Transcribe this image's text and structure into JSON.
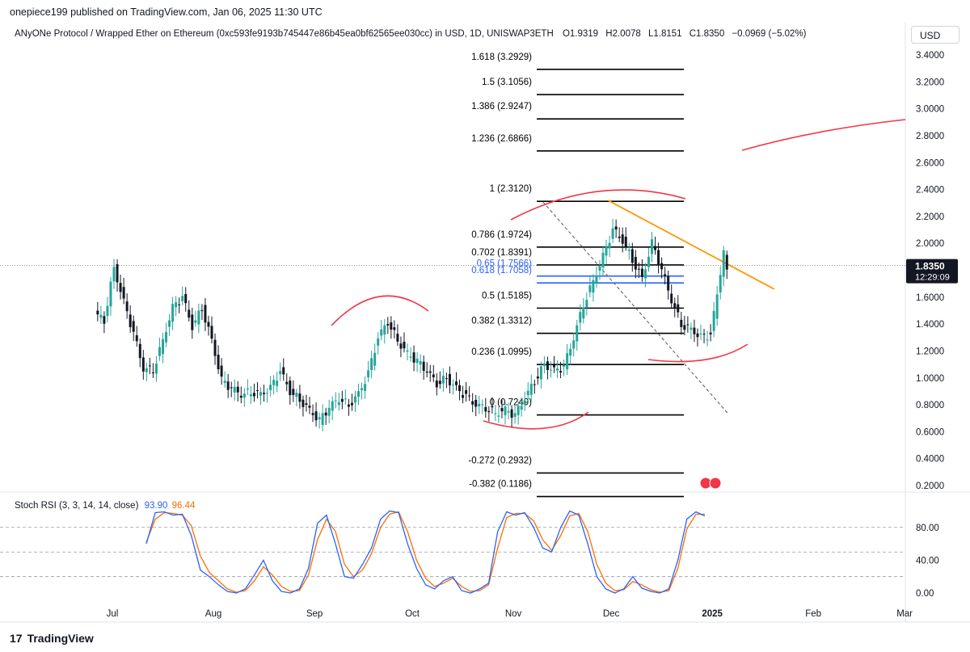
{
  "header": {
    "published_by": "onepiece199 published on TradingView.com, Jan 06, 2025 11:30 UTC"
  },
  "legend": {
    "symbol": "ANyONe Protocol / Wrapped Ether on Ethereum (0xc593fe9193b745447e86b45ea0bf62565ee030cc) in USD, 1D, UNISWAP3ETH",
    "open": "O1.9319",
    "high": "H2.0078",
    "low": "L1.8151",
    "close": "C1.8350",
    "change": "−0.0969 (−5.02%)"
  },
  "currency_button": "USD",
  "price_label": {
    "value": "1.8350",
    "countdown": "12:29:09",
    "color": "#131722"
  },
  "rsi_legend": {
    "label": "Stoch RSI (3, 3, 14, 14, close)",
    "k": "93.90",
    "d": "96.44"
  },
  "footer": {
    "brand": "TradingView",
    "mark": "17"
  },
  "colors": {
    "up": "#26a69a",
    "down": "#131722",
    "fib": "#000000",
    "fib_blue": "#2962ff",
    "orange": "#ff9800",
    "red": "#f23645",
    "k_line": "#2962ff",
    "d_line": "#ff6d00"
  },
  "chart_data": [
    {
      "type": "candlestick",
      "title": "ANyONe Protocol / Wrapped Ether on Ethereum",
      "y_axis_ticks": [
        "3.4000",
        "3.2000",
        "3.0000",
        "2.8000",
        "2.6000",
        "2.4000",
        "2.2000",
        "2.0000",
        "1.8000",
        "1.6000",
        "1.4000",
        "1.2000",
        "1.0000",
        "0.8000",
        "0.6000",
        "0.4000",
        "0.2000"
      ],
      "x_axis_ticks": [
        "Jul",
        "Aug",
        "Sep",
        "Oct",
        "Nov",
        "Dec",
        "2025",
        "Feb",
        "Mar"
      ],
      "ylim": [
        0.12,
        3.5
      ],
      "close_series": [
        {
          "date": "2024-06-26",
          "value": 1.48
        },
        {
          "date": "2024-06-29",
          "value": 1.43
        },
        {
          "date": "2024-07-02",
          "value": 1.82
        },
        {
          "date": "2024-07-05",
          "value": 1.56
        },
        {
          "date": "2024-07-08",
          "value": 1.33
        },
        {
          "date": "2024-07-11",
          "value": 1.07
        },
        {
          "date": "2024-07-14",
          "value": 1.06
        },
        {
          "date": "2024-07-17",
          "value": 1.28
        },
        {
          "date": "2024-07-20",
          "value": 1.52
        },
        {
          "date": "2024-07-23",
          "value": 1.6
        },
        {
          "date": "2024-07-26",
          "value": 1.38
        },
        {
          "date": "2024-07-29",
          "value": 1.52
        },
        {
          "date": "2024-08-01",
          "value": 1.28
        },
        {
          "date": "2024-08-04",
          "value": 0.98
        },
        {
          "date": "2024-08-07",
          "value": 0.92
        },
        {
          "date": "2024-08-10",
          "value": 0.88
        },
        {
          "date": "2024-08-13",
          "value": 0.9
        },
        {
          "date": "2024-08-16",
          "value": 0.88
        },
        {
          "date": "2024-08-19",
          "value": 0.92
        },
        {
          "date": "2024-08-22",
          "value": 1.05
        },
        {
          "date": "2024-08-25",
          "value": 0.9
        },
        {
          "date": "2024-08-28",
          "value": 0.84
        },
        {
          "date": "2024-08-31",
          "value": 0.76
        },
        {
          "date": "2024-09-03",
          "value": 0.68
        },
        {
          "date": "2024-09-06",
          "value": 0.78
        },
        {
          "date": "2024-09-09",
          "value": 0.85
        },
        {
          "date": "2024-09-12",
          "value": 0.8
        },
        {
          "date": "2024-09-15",
          "value": 0.88
        },
        {
          "date": "2024-09-18",
          "value": 1.03
        },
        {
          "date": "2024-09-21",
          "value": 1.3
        },
        {
          "date": "2024-09-24",
          "value": 1.42
        },
        {
          "date": "2024-09-27",
          "value": 1.28
        },
        {
          "date": "2024-09-30",
          "value": 1.18
        },
        {
          "date": "2024-10-03",
          "value": 1.12
        },
        {
          "date": "2024-10-06",
          "value": 1.05
        },
        {
          "date": "2024-10-09",
          "value": 0.96
        },
        {
          "date": "2024-10-12",
          "value": 1.0
        },
        {
          "date": "2024-10-15",
          "value": 0.92
        },
        {
          "date": "2024-10-18",
          "value": 0.86
        },
        {
          "date": "2024-10-21",
          "value": 0.8
        },
        {
          "date": "2024-10-24",
          "value": 0.78
        },
        {
          "date": "2024-10-27",
          "value": 0.74
        },
        {
          "date": "2024-10-30",
          "value": 0.76
        },
        {
          "date": "2024-11-02",
          "value": 0.72
        },
        {
          "date": "2024-11-05",
          "value": 0.85
        },
        {
          "date": "2024-11-08",
          "value": 0.98
        },
        {
          "date": "2024-11-11",
          "value": 1.1
        },
        {
          "date": "2024-11-14",
          "value": 1.05
        },
        {
          "date": "2024-11-17",
          "value": 1.08
        },
        {
          "date": "2024-11-20",
          "value": 1.3
        },
        {
          "date": "2024-11-23",
          "value": 1.55
        },
        {
          "date": "2024-11-26",
          "value": 1.72
        },
        {
          "date": "2024-11-29",
          "value": 1.9
        },
        {
          "date": "2024-12-02",
          "value": 2.1
        },
        {
          "date": "2024-12-05",
          "value": 2.02
        },
        {
          "date": "2024-12-08",
          "value": 1.88
        },
        {
          "date": "2024-12-11",
          "value": 1.74
        },
        {
          "date": "2024-12-14",
          "value": 2.0
        },
        {
          "date": "2024-12-17",
          "value": 1.8
        },
        {
          "date": "2024-12-20",
          "value": 1.58
        },
        {
          "date": "2024-12-23",
          "value": 1.4
        },
        {
          "date": "2024-12-26",
          "value": 1.36
        },
        {
          "date": "2024-12-29",
          "value": 1.3
        },
        {
          "date": "2025-01-01",
          "value": 1.32
        },
        {
          "date": "2025-01-03",
          "value": 1.62
        },
        {
          "date": "2025-01-05",
          "value": 1.92
        },
        {
          "date": "2025-01-06",
          "value": 1.835
        }
      ],
      "fib_levels": [
        {
          "label": "1.618 (3.2929)",
          "value": 3.2929,
          "blue": false
        },
        {
          "label": "1.5 (3.1056)",
          "value": 3.1056,
          "blue": false
        },
        {
          "label": "1.386 (2.9247)",
          "value": 2.9247,
          "blue": false
        },
        {
          "label": "1.236 (2.6866)",
          "value": 2.6866,
          "blue": false
        },
        {
          "label": "1 (2.3120)",
          "value": 2.312,
          "blue": false
        },
        {
          "label": "0.786 (1.9724)",
          "value": 1.9724,
          "blue": false
        },
        {
          "label": "0.702 (1.8391)",
          "value": 1.8391,
          "blue": false
        },
        {
          "label": "0.65 (1.7566)",
          "value": 1.7566,
          "blue": true
        },
        {
          "label": "0.618 (1.7058)",
          "value": 1.7058,
          "blue": true
        },
        {
          "label": "0.5 (1.5185)",
          "value": 1.5185,
          "blue": false
        },
        {
          "label": "0.382 (1.3312)",
          "value": 1.3312,
          "blue": false
        },
        {
          "label": "0.236 (1.0995)",
          "value": 1.0995,
          "blue": false
        },
        {
          "label": "0 (0.7249)",
          "value": 0.7249,
          "blue": false
        },
        {
          "label": "-0.272 (0.2932)",
          "value": 0.2932,
          "blue": false
        },
        {
          "label": "-0.382 (0.1186)",
          "value": 0.1186,
          "blue": false
        }
      ],
      "fib_range": {
        "from_date": "2024-11-10",
        "to_date": "2025-01-06"
      },
      "trendline": {
        "from": {
          "date": "2024-11-30",
          "value": 2.32
        },
        "to": {
          "date": "2025-01-20",
          "value": 1.66
        }
      },
      "diagonal": {
        "from": {
          "date": "2024-11-10",
          "value": 2.31
        },
        "to": {
          "date": "2025-01-06",
          "value": 0.73
        }
      }
    },
    {
      "type": "line",
      "title": "Stoch RSI (3, 3, 14, 14, close)",
      "y_axis_ticks": [
        "80.00",
        "40.00",
        "0.00"
      ],
      "levels": [
        80,
        20,
        50
      ],
      "ylim": [
        -5,
        108
      ],
      "series": [
        {
          "name": "K",
          "values": [
            60,
            98,
            99,
            95,
            96,
            70,
            28,
            20,
            10,
            2,
            0,
            5,
            22,
            40,
            15,
            2,
            0,
            5,
            30,
            85,
            95,
            60,
            20,
            18,
            35,
            55,
            90,
            100,
            98,
            60,
            30,
            10,
            5,
            15,
            20,
            3,
            0,
            5,
            12,
            75,
            99,
            95,
            98,
            80,
            55,
            50,
            80,
            100,
            95,
            60,
            20,
            5,
            0,
            5,
            20,
            6,
            2,
            0,
            5,
            40,
            90,
            99,
            94
          ]
        },
        {
          "name": "D",
          "values": [
            62,
            90,
            98,
            97,
            95,
            82,
            45,
            25,
            15,
            5,
            1,
            3,
            15,
            32,
            22,
            8,
            2,
            3,
            22,
            65,
            90,
            75,
            35,
            20,
            28,
            48,
            80,
            96,
            99,
            75,
            40,
            18,
            8,
            12,
            18,
            8,
            2,
            3,
            10,
            55,
            92,
            97,
            97,
            88,
            65,
            52,
            70,
            94,
            97,
            75,
            35,
            12,
            3,
            4,
            14,
            10,
            4,
            1,
            3,
            30,
            78,
            96,
            96
          ]
        }
      ]
    }
  ]
}
